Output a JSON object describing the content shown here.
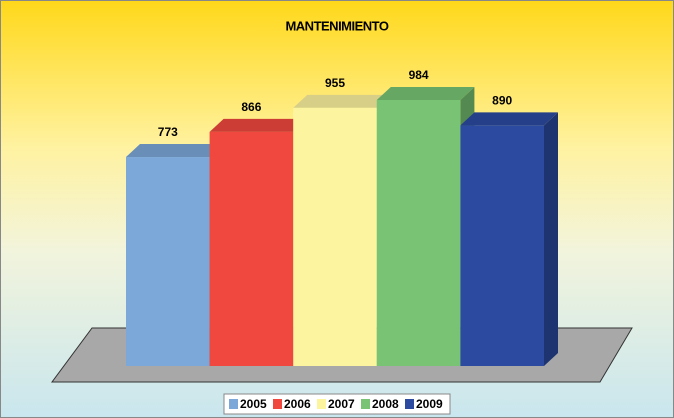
{
  "chart_data": {
    "type": "bar",
    "title": "MANTENIMIENTO",
    "series": [
      {
        "name": "2005",
        "color": "#7ba7d9",
        "values": [
          773
        ]
      },
      {
        "name": "2006",
        "color": "#f0483e",
        "values": [
          866
        ]
      },
      {
        "name": "2007",
        "color": "#fdf4a0",
        "values": [
          955
        ]
      },
      {
        "name": "2008",
        "color": "#78c474",
        "values": [
          984
        ]
      },
      {
        "name": "2009",
        "color": "#2b4aa0",
        "values": [
          890
        ]
      }
    ],
    "legend": "bottom"
  }
}
